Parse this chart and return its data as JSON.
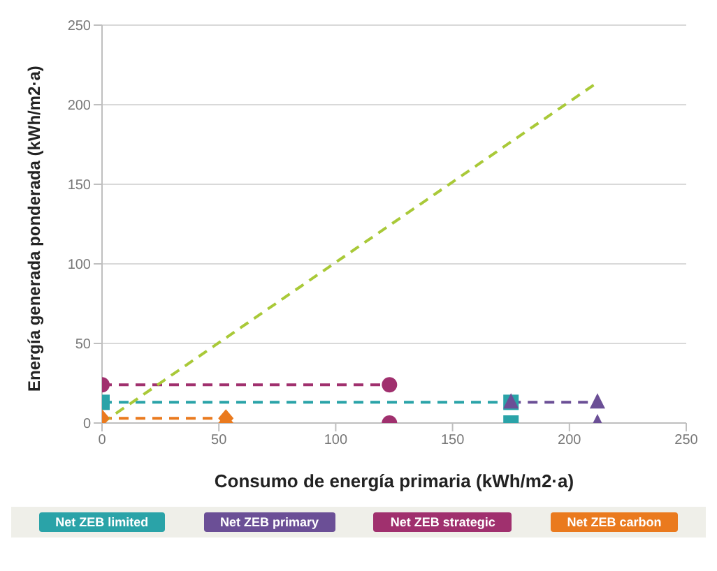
{
  "chart_data": {
    "type": "line",
    "xlabel": "Consumo de energía primaria (kWh/m2·a)",
    "ylabel": "Energía generada ponderada  (kWh/m2·a)",
    "xlim": [
      0,
      250
    ],
    "xticks": [
      0,
      50,
      100,
      150,
      200,
      250
    ],
    "ylim": [
      0,
      250
    ],
    "yticks": [
      0,
      50,
      100,
      150,
      200,
      250
    ],
    "grid": "y",
    "legend": "bottom",
    "line_style": "dashed",
    "series": [
      {
        "name": "Net ZEB limited",
        "color": "#2aa3a8",
        "marker": "square",
        "x": [
          0,
          175
        ],
        "values": [
          13,
          13
        ]
      },
      {
        "name": "Net ZEB primary",
        "color": "#6b4f96",
        "marker": "triangle",
        "x": [
          175,
          212
        ],
        "values": [
          13,
          13
        ]
      },
      {
        "name": "Net ZEB strategic",
        "color": "#a0306e",
        "marker": "circle",
        "x": [
          0,
          123
        ],
        "values": [
          24,
          24
        ]
      },
      {
        "name": "Net ZEB carbon",
        "color": "#ea7a1e",
        "marker": "diamond",
        "x": [
          0,
          53
        ],
        "values": [
          3,
          3
        ]
      },
      {
        "color": "#2aa3a8",
        "type": "scatter",
        "marker": "square",
        "x": [
          175
        ],
        "values": [
          0
        ]
      },
      {
        "color": "#6b4f96",
        "type": "scatter",
        "marker": "triangle",
        "x": [
          212
        ],
        "values": [
          0
        ]
      },
      {
        "color": "#a0306e",
        "type": "scatter",
        "marker": "circle",
        "x": [
          123
        ],
        "values": [
          0
        ]
      },
      {
        "color": "#ea7a1e",
        "type": "scatter",
        "marker": "diamond",
        "x": [
          53
        ],
        "values": [
          0
        ]
      },
      {
        "color": "#a9c938",
        "marker": "none",
        "x": [
          0,
          212
        ],
        "values": [
          0,
          214
        ]
      }
    ]
  }
}
